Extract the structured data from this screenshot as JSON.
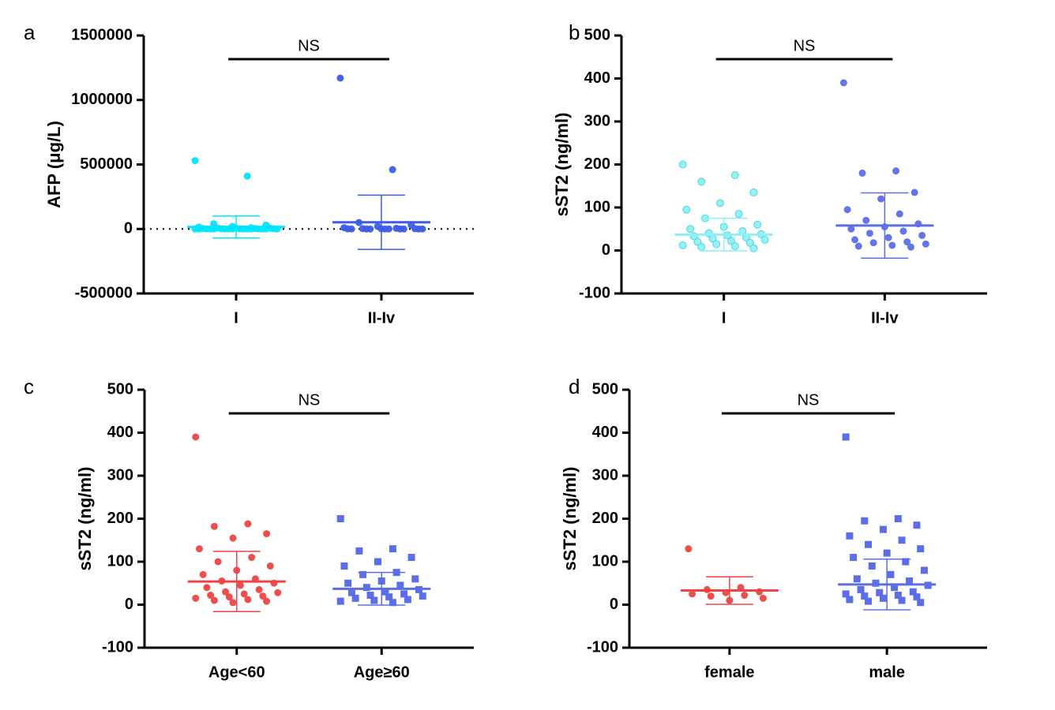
{
  "chart_data": [
    {
      "type": "strip",
      "label": "a",
      "ylabel": "AFP (μg/L)",
      "categories": [
        "I",
        "II-Iv"
      ],
      "annotation": "NS",
      "ylim": [
        -500000,
        1500000
      ],
      "yticks": [
        -500000,
        0,
        500000,
        1000000,
        1500000
      ],
      "zero_line": true,
      "series": [
        {
          "color": "#00e5ff",
          "marker": "circle",
          "mean": 15000,
          "sd": 85000,
          "values": [
            530000,
            410000,
            40000,
            30000,
            20000,
            15000,
            10000,
            8000,
            6000,
            5000,
            4000,
            3000,
            2000,
            1500,
            1000,
            800,
            500,
            300,
            200,
            100,
            50,
            20,
            10,
            5,
            0,
            0,
            0,
            0,
            0,
            0
          ]
        },
        {
          "color": "#3d5ce6",
          "marker": "circle",
          "mean": 52000,
          "sd": 210000,
          "values": [
            1170000,
            460000,
            50000,
            30000,
            20000,
            10000,
            5000,
            3000,
            2000,
            1000,
            500,
            200,
            100,
            50,
            10,
            0,
            0,
            0,
            0,
            0
          ]
        }
      ]
    },
    {
      "type": "strip",
      "label": "b",
      "ylabel": "sST2 (ng/ml)",
      "categories": [
        "I",
        "II-Iv"
      ],
      "annotation": "NS",
      "ylim": [
        -100,
        500
      ],
      "yticks": [
        -100,
        0,
        100,
        200,
        300,
        400,
        500
      ],
      "zero_line": false,
      "series": [
        {
          "color": "#8ef0f5",
          "marker": "circle",
          "mean": 37,
          "sd": 38,
          "values": [
            200,
            175,
            160,
            135,
            110,
            95,
            85,
            75,
            60,
            55,
            50,
            45,
            40,
            38,
            35,
            33,
            30,
            28,
            25,
            22,
            20,
            18,
            15,
            12,
            10,
            8,
            5
          ]
        },
        {
          "color": "#5b6ee8",
          "marker": "circle",
          "mean": 58,
          "sd": 76,
          "values": [
            390,
            185,
            180,
            135,
            120,
            95,
            85,
            70,
            62,
            55,
            50,
            45,
            40,
            35,
            30,
            25,
            20,
            18,
            15,
            12,
            10,
            8
          ]
        }
      ]
    },
    {
      "type": "strip",
      "label": "c",
      "ylabel": "sST2 (ng/ml)",
      "categories": [
        "Age<60",
        "Age≥60"
      ],
      "annotation": "NS",
      "ylim": [
        -100,
        500
      ],
      "yticks": [
        -100,
        0,
        100,
        200,
        300,
        400,
        500
      ],
      "zero_line": false,
      "series": [
        {
          "color": "#ee4444",
          "marker": "circle",
          "mean": 54,
          "sd": 70,
          "values": [
            390,
            188,
            182,
            165,
            155,
            130,
            110,
            100,
            90,
            80,
            70,
            60,
            55,
            50,
            45,
            40,
            35,
            30,
            28,
            25,
            22,
            20,
            18,
            15,
            12,
            10,
            8,
            5
          ]
        },
        {
          "color": "#5b6ee8",
          "marker": "square",
          "mean": 37,
          "sd": 38,
          "values": [
            200,
            130,
            125,
            110,
            100,
            90,
            75,
            70,
            60,
            55,
            50,
            45,
            40,
            35,
            30,
            28,
            25,
            22,
            20,
            18,
            15,
            12,
            10,
            8,
            5
          ]
        }
      ]
    },
    {
      "type": "strip",
      "label": "d",
      "ylabel": "sST2 (ng/ml)",
      "categories": [
        "female",
        "male"
      ],
      "annotation": "NS",
      "ylim": [
        -100,
        500
      ],
      "yticks": [
        -100,
        0,
        100,
        200,
        300,
        400,
        500
      ],
      "zero_line": false,
      "series": [
        {
          "color": "#ee4444",
          "marker": "circle",
          "mean": 33,
          "sd": 32,
          "values": [
            130,
            40,
            35,
            30,
            28,
            25,
            22,
            20,
            15,
            10
          ]
        },
        {
          "color": "#5b6ee8",
          "marker": "square",
          "mean": 47,
          "sd": 59,
          "values": [
            390,
            200,
            195,
            185,
            175,
            160,
            150,
            140,
            130,
            120,
            110,
            100,
            90,
            80,
            70,
            60,
            55,
            50,
            45,
            40,
            35,
            30,
            28,
            25,
            22,
            20,
            18,
            15,
            12,
            10,
            8,
            5
          ]
        }
      ]
    }
  ]
}
